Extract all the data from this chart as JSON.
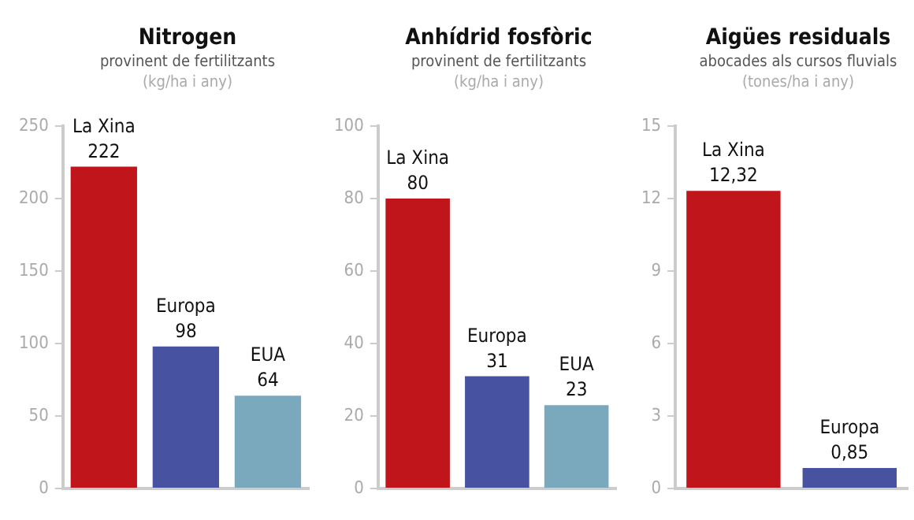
{
  "chart_data": [
    {
      "type": "bar",
      "title": "Nitrogen",
      "subtitle": "provinent de fertilitzants",
      "ylabel": "(kg/ha i any)",
      "categories": [
        "La Xina",
        "Europa",
        "EUA"
      ],
      "values": [
        222,
        98,
        64
      ],
      "colors": [
        "#c0161b",
        "#4752a0",
        "#7aa9bd"
      ],
      "ylim": [
        0,
        250
      ],
      "yticks": [
        0,
        50,
        100,
        150,
        200,
        250
      ],
      "grid": false,
      "tick_labels": "y",
      "data_labels": true
    },
    {
      "type": "bar",
      "title": "Anhídrid fosfòric",
      "subtitle": "provinent de fertilitzants",
      "ylabel": "(kg/ha i any)",
      "categories": [
        "La Xina",
        "Europa",
        "EUA"
      ],
      "values": [
        80,
        31,
        23
      ],
      "colors": [
        "#c0161b",
        "#4752a0",
        "#7aa9bd"
      ],
      "ylim": [
        0,
        100
      ],
      "yticks": [
        0,
        20,
        40,
        60,
        80,
        100
      ],
      "grid": false,
      "tick_labels": "y",
      "data_labels": true
    },
    {
      "type": "bar",
      "title": "Aigües residuals",
      "subtitle": "abocades als cursos fluvials",
      "ylabel": "(tones/ha i any)",
      "categories": [
        "La Xina",
        "Europa"
      ],
      "values": [
        12.32,
        0.85
      ],
      "value_labels": [
        "12,32",
        "0,85"
      ],
      "colors": [
        "#c0161b",
        "#4752a0"
      ],
      "ylim": [
        0,
        15
      ],
      "yticks": [
        0,
        3,
        6,
        9,
        12,
        15
      ],
      "grid": false,
      "tick_labels": "y"
    }
  ]
}
